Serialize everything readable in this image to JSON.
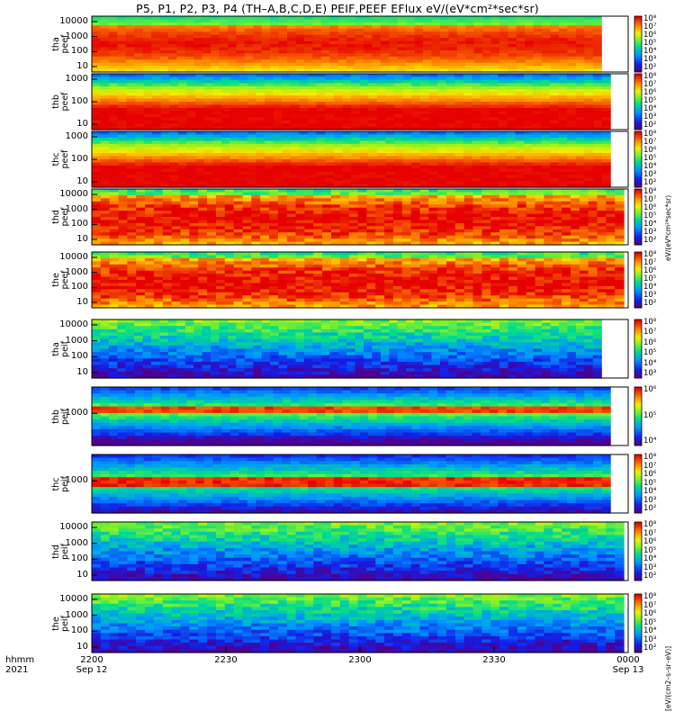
{
  "title": "P5, P1, P2, P3, P4 (TH–A,B,C,D,E) PEIF,PEEF EFlux eV/(eV*cm²*sec*sr)",
  "colorbar_label": "eV/(eV*cm²*sec*sr)",
  "colorbar_label_bottom": "[eV/(cm2–s–sr–eV)]",
  "x_axis": {
    "row_labels": [
      "hhmm",
      "2021"
    ],
    "ticks": [
      {
        "value": 0,
        "label": "2200",
        "sub": "Sep 12"
      },
      {
        "value": 30,
        "label": "2230",
        "sub": ""
      },
      {
        "value": 60,
        "label": "2300",
        "sub": ""
      },
      {
        "value": 90,
        "label": "2330",
        "sub": ""
      },
      {
        "value": 120,
        "label": "0000",
        "sub": "Sep 13"
      }
    ]
  },
  "chart_data": {
    "type": "heatmap",
    "title": "P5, P1, P2, P3, P4 (TH–A,B,C,D,E) PEIF,PEEF EFlux eV/(eV*cm²*sec*sr)",
    "x_range_minutes": [
      0,
      120
    ],
    "colorscale": "rainbow (blue-green-yellow-red)",
    "panels": [
      {
        "probe": "tha",
        "species": "peef",
        "ylabel": [
          "tha",
          "peef"
        ],
        "yscale": "log",
        "yticks": [
          "10000",
          "1000",
          "100",
          "10"
        ],
        "ylim": [
          5,
          30000
        ],
        "cbticks": [
          "10⁸",
          "10⁷",
          "10⁶",
          "10⁵",
          "10⁴",
          "10³",
          "10²"
        ],
        "data_end_minute": 114,
        "profile": "hot",
        "description_values": {
          "peak_log_flux": 8.5,
          "min_log_flux": 5.5
        }
      },
      {
        "probe": "thb",
        "species": "peef",
        "ylabel": [
          "thb",
          "peef"
        ],
        "yscale": "log",
        "yticks": [
          "1000",
          "100",
          "10"
        ],
        "ylim": [
          5,
          3000
        ],
        "cbticks": [
          "10⁸",
          "10⁷",
          "10⁶",
          "10⁵",
          "10⁴",
          "10³",
          "10²"
        ],
        "data_end_minute": 116,
        "profile": "cold_top",
        "description_values": {
          "peak_log_flux": 8.5,
          "min_log_flux": 3.0
        }
      },
      {
        "probe": "thc",
        "species": "peef",
        "ylabel": [
          "thc",
          "peef"
        ],
        "yscale": "log",
        "yticks": [
          "1000",
          "100",
          "10"
        ],
        "ylim": [
          5,
          3000
        ],
        "cbticks": [
          "10⁸",
          "10⁷",
          "10⁶",
          "10⁵",
          "10⁴",
          "10³",
          "10²"
        ],
        "data_end_minute": 116,
        "profile": "cold_top",
        "description_values": {
          "peak_log_flux": 8.5,
          "min_log_flux": 2.5
        }
      },
      {
        "probe": "thd",
        "species": "peef",
        "ylabel": [
          "thd",
          "peef"
        ],
        "yscale": "log",
        "yticks": [
          "10000",
          "1000",
          "100",
          "10"
        ],
        "ylim": [
          5,
          30000
        ],
        "cbticks": [
          "10⁸",
          "10⁷",
          "10⁶",
          "10⁵",
          "10⁴",
          "10³",
          "10²"
        ],
        "data_end_minute": 119,
        "profile": "hot_noisy",
        "description_values": {
          "peak_log_flux": 8.5,
          "min_log_flux": 5.0
        }
      },
      {
        "probe": "the",
        "species": "peef",
        "ylabel": [
          "the",
          "peef"
        ],
        "yscale": "log",
        "yticks": [
          "10000",
          "1000",
          "100",
          "10"
        ],
        "ylim": [
          5,
          30000
        ],
        "cbticks": [
          "10⁸",
          "10⁷",
          "10⁶",
          "10⁵",
          "10⁴",
          "10³",
          "10²"
        ],
        "data_end_minute": 119,
        "profile": "hot_noisy",
        "description_values": {
          "peak_log_flux": 8.5,
          "min_log_flux": 5.0
        }
      },
      {
        "probe": "tha",
        "species": "peif",
        "ylabel": [
          "tha",
          "peif"
        ],
        "yscale": "log",
        "yticks": [
          "10000",
          "1000",
          "100",
          "10"
        ],
        "ylim": [
          5,
          30000
        ],
        "cbticks": [
          "10⁸",
          "10⁷",
          "10⁶",
          "10⁵",
          "10⁴",
          "10³"
        ],
        "data_end_minute": 114,
        "profile": "ion_green",
        "description_values": {
          "peak_log_flux": 5.8,
          "min_log_flux": 3.0
        }
      },
      {
        "probe": "thb",
        "species": "peif",
        "ylabel": [
          "thb",
          "peif"
        ],
        "yscale": "log",
        "yticks": [
          "1000"
        ],
        "ylim": [
          100,
          30000
        ],
        "cbticks": [
          "10⁶",
          "10⁵",
          "10⁴"
        ],
        "data_end_minute": 116,
        "profile": "ion_band",
        "description_values": {
          "peak_log_flux": 6.5,
          "min_log_flux": 3.5
        }
      },
      {
        "probe": "thc",
        "species": "peif",
        "ylabel": [
          "thc",
          "peif"
        ],
        "yscale": "log",
        "yticks": [
          "1000"
        ],
        "ylim": [
          100,
          30000
        ],
        "cbticks": [
          "10⁸",
          "10⁷",
          "10⁶",
          "10⁵",
          "10⁴",
          "10³",
          "10²"
        ],
        "data_end_minute": 116,
        "profile": "ion_band_red",
        "description_values": {
          "peak_log_flux": 6.5,
          "min_log_flux": 3.5
        }
      },
      {
        "probe": "thd",
        "species": "peif",
        "ylabel": [
          "thd",
          "peif"
        ],
        "yscale": "log",
        "yticks": [
          "10000",
          "1000",
          "100",
          "10"
        ],
        "ylim": [
          5,
          30000
        ],
        "cbticks": [
          "10⁸",
          "10⁷",
          "10⁶",
          "10⁵",
          "10⁴",
          "10³",
          "10²"
        ],
        "data_end_minute": 119,
        "profile": "ion_green",
        "description_values": {
          "peak_log_flux": 6.0,
          "min_log_flux": 3.0
        }
      },
      {
        "probe": "the",
        "species": "peif",
        "ylabel": [
          "the",
          "peif"
        ],
        "yscale": "log",
        "yticks": [
          "10000",
          "1000",
          "100",
          "10"
        ],
        "ylim": [
          5,
          30000
        ],
        "cbticks": [
          "10⁸",
          "10⁷",
          "10⁶",
          "10⁵",
          "10⁴",
          "10³",
          "10²"
        ],
        "data_end_minute": 119,
        "profile": "ion_green",
        "description_values": {
          "peak_log_flux": 6.0,
          "min_log_flux": 3.0
        }
      }
    ]
  }
}
